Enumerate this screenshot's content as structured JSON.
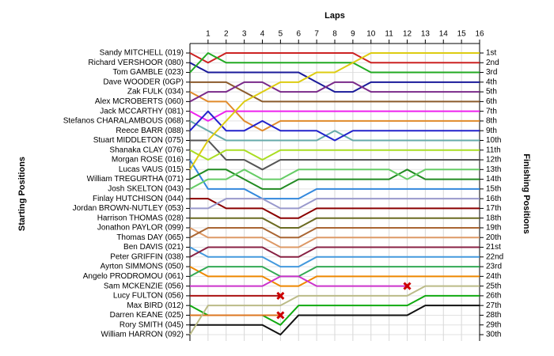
{
  "chart_data": {
    "type": "line",
    "title": "Laps",
    "y_label": "Starting Positions",
    "y2_label": "Finishing Positions",
    "x": [
      0,
      1,
      2,
      3,
      4,
      5,
      6,
      7,
      8,
      9,
      10,
      11,
      12,
      13,
      14,
      15,
      16
    ],
    "xlim": [
      0,
      16
    ],
    "xticks": [
      1,
      2,
      3,
      4,
      5,
      6,
      7,
      8,
      9,
      10,
      11,
      12,
      13,
      14,
      15,
      16
    ],
    "ylim": [
      1,
      30
    ],
    "inverted": true,
    "grid": true,
    "y2ticks": [
      {
        "value": 1,
        "label": "1st"
      },
      {
        "value": 2,
        "label": "2nd"
      },
      {
        "value": 3,
        "label": "3rd"
      },
      {
        "value": 4,
        "label": "4th"
      },
      {
        "value": 5,
        "label": "5th"
      },
      {
        "value": 6,
        "label": "6th"
      },
      {
        "value": 7,
        "label": "7th"
      },
      {
        "value": 8,
        "label": "8th"
      },
      {
        "value": 9,
        "label": "9th"
      },
      {
        "value": 10,
        "label": "10th"
      },
      {
        "value": 11,
        "label": "11th"
      },
      {
        "value": 12,
        "label": "12th"
      },
      {
        "value": 13,
        "label": "13th"
      },
      {
        "value": 14,
        "label": "14th"
      },
      {
        "value": 15,
        "label": "15th"
      },
      {
        "value": 16,
        "label": "16th"
      },
      {
        "value": 17,
        "label": "17th"
      },
      {
        "value": 18,
        "label": "18th"
      },
      {
        "value": 19,
        "label": "19th"
      },
      {
        "value": 20,
        "label": "20th"
      },
      {
        "value": 21,
        "label": "21st"
      },
      {
        "value": 22,
        "label": "22nd"
      },
      {
        "value": 23,
        "label": "23rd"
      },
      {
        "value": 24,
        "label": "24th"
      },
      {
        "value": 25,
        "label": "25th"
      },
      {
        "value": 26,
        "label": "26th"
      },
      {
        "value": 27,
        "label": "27th"
      },
      {
        "value": 28,
        "label": "28th"
      },
      {
        "value": 29,
        "label": "29th"
      },
      {
        "value": 30,
        "label": "30th"
      }
    ],
    "series": [
      {
        "name": "Sandy MITCHELL (019)",
        "color": "#cc2222",
        "values": [
          1,
          2,
          1,
          1,
          1,
          1,
          1,
          1,
          1,
          1,
          2,
          2,
          2,
          2,
          2,
          2,
          2
        ]
      },
      {
        "name": "Richard VERSHOOR (080)",
        "color": "#1a1a99",
        "values": [
          2,
          3,
          3,
          3,
          3,
          3,
          3,
          4,
          5,
          5,
          4,
          4,
          4,
          4,
          4,
          4,
          4
        ]
      },
      {
        "name": "Tom GAMBLE (023)",
        "color": "#22aa22",
        "values": [
          3,
          1,
          2,
          2,
          2,
          2,
          2,
          2,
          2,
          2,
          3,
          3,
          3,
          3,
          3,
          3,
          3
        ]
      },
      {
        "name": "Dave WOODER (0GP)",
        "color": "#8b5a2b",
        "values": [
          4,
          4,
          4,
          5,
          6,
          6,
          6,
          6,
          6,
          6,
          6,
          6,
          6,
          6,
          6,
          6,
          6
        ]
      },
      {
        "name": "Zak FULK (034)",
        "color": "#e08a2a",
        "values": [
          5,
          6,
          6,
          8,
          9,
          8,
          8,
          8,
          8,
          8,
          8,
          8,
          8,
          8,
          8,
          8,
          8
        ]
      },
      {
        "name": "Alex MCROBERTS (060)",
        "color": "#7a2a8a",
        "values": [
          6,
          5,
          5,
          4,
          4,
          5,
          5,
          5,
          4,
          4,
          5,
          5,
          5,
          5,
          5,
          5,
          5
        ]
      },
      {
        "name": "Jack MCCARTHY (081)",
        "color": "#ee22ee",
        "values": [
          7,
          8,
          7,
          7,
          7,
          7,
          7,
          7,
          7,
          7,
          7,
          7,
          7,
          7,
          7,
          7,
          7
        ]
      },
      {
        "name": "Stefanos CHARALAMBOUS (068)",
        "color": "#66aaaa",
        "values": [
          8,
          9,
          10,
          10,
          10,
          10,
          10,
          10,
          9,
          10,
          10,
          10,
          10,
          10,
          10,
          10,
          10
        ]
      },
      {
        "name": "Reece BARR (088)",
        "color": "#2222cc",
        "values": [
          9,
          7,
          9,
          9,
          8,
          9,
          9,
          9,
          10,
          9,
          9,
          9,
          9,
          9,
          9,
          9,
          9
        ]
      },
      {
        "name": "Stuart MIDDLETON (075)",
        "color": "#555555",
        "values": [
          10,
          10,
          12,
          12,
          13,
          12,
          12,
          12,
          12,
          12,
          12,
          12,
          12,
          12,
          12,
          12,
          12
        ]
      },
      {
        "name": "Shanaka CLAY (076)",
        "color": "#aadd22",
        "values": [
          11,
          12,
          11,
          11,
          12,
          11,
          11,
          11,
          11,
          11,
          11,
          11,
          11,
          11,
          11,
          11,
          11
        ]
      },
      {
        "name": "Morgan ROSE (016)",
        "color": "#3388dd",
        "values": [
          12,
          15,
          15,
          15,
          16,
          16,
          16,
          15,
          15,
          15,
          15,
          15,
          15,
          15,
          15,
          15,
          15
        ]
      },
      {
        "name": "Lucas VAUS (015)",
        "color": "#ddcc11",
        "values": [
          13,
          10,
          8,
          6,
          5,
          4,
          4,
          3,
          3,
          2,
          1,
          1,
          1,
          1,
          1,
          1,
          1
        ]
      },
      {
        "name": "William TREGURTHA (071)",
        "color": "#228b22",
        "values": [
          14,
          13,
          13,
          14,
          15,
          15,
          14,
          14,
          14,
          14,
          14,
          14,
          13,
          14,
          14,
          14,
          14
        ]
      },
      {
        "name": "Josh SKELTON (043)",
        "color": "#66cc66",
        "values": [
          15,
          14,
          14,
          13,
          14,
          14,
          13,
          13,
          13,
          13,
          13,
          13,
          14,
          13,
          13,
          13,
          13
        ]
      },
      {
        "name": "Finlay HUTCHISON (044)",
        "color": "#8b0000",
        "values": [
          16,
          16,
          17,
          17,
          17,
          18,
          18,
          17,
          17,
          17,
          17,
          17,
          17,
          17,
          17,
          17,
          17
        ]
      },
      {
        "name": "Jordan BROWN-NUTLEY (053)",
        "color": "#9999cc",
        "values": [
          17,
          17,
          16,
          16,
          16,
          17,
          17,
          16,
          16,
          16,
          16,
          16,
          16,
          16,
          16,
          16,
          16
        ]
      },
      {
        "name": "Harrison THOMAS (028)",
        "color": "#6b6b22",
        "values": [
          18,
          18,
          18,
          18,
          18,
          19,
          19,
          18,
          18,
          18,
          18,
          18,
          18,
          18,
          18,
          18,
          18
        ]
      },
      {
        "name": "Jonathon PAYLOR (099)",
        "color": "#dd9966",
        "values": [
          19,
          20,
          20,
          20,
          20,
          21,
          21,
          20,
          20,
          20,
          20,
          20,
          20,
          20,
          20,
          20,
          20
        ]
      },
      {
        "name": "Thomas DAY (065)",
        "color": "#aa6633",
        "values": [
          20,
          19,
          19,
          19,
          19,
          20,
          20,
          19,
          19,
          19,
          19,
          19,
          19,
          19,
          19,
          19,
          19
        ]
      },
      {
        "name": "Ben DAVIS (021)",
        "color": "#4499dd",
        "values": [
          21,
          22,
          22,
          22,
          22,
          23,
          23,
          22,
          22,
          22,
          22,
          22,
          22,
          22,
          22,
          22,
          22
        ]
      },
      {
        "name": "Peter GRIFFIN (038)",
        "color": "#882244",
        "values": [
          22,
          21,
          21,
          21,
          21,
          22,
          22,
          21,
          21,
          21,
          21,
          21,
          21,
          21,
          21,
          21,
          21
        ]
      },
      {
        "name": "Ayrton SIMMONS (050)",
        "color": "#ee8800",
        "values": [
          23,
          24,
          24,
          24,
          24,
          25,
          25,
          24,
          24,
          24,
          24,
          24,
          24,
          24,
          24,
          24,
          24
        ]
      },
      {
        "name": "Angelo PRODROMOU (061)",
        "color": "#33aa55",
        "values": [
          24,
          23,
          23,
          23,
          23,
          24,
          24,
          23,
          23,
          23,
          23,
          23,
          23,
          23,
          23,
          23,
          23
        ]
      },
      {
        "name": "Sam MCKENZIE (056)",
        "color": "#cc33cc",
        "values": [
          25,
          25,
          25,
          25,
          25,
          24,
          24,
          25,
          25,
          25,
          25,
          25,
          25,
          null,
          null,
          null,
          null
        ]
      },
      {
        "name": "Lucy FULTON (056)",
        "color": "#aa1111",
        "values": [
          26,
          26,
          26,
          26,
          26,
          26,
          null,
          null,
          null,
          null,
          null,
          null,
          null,
          null,
          null,
          null,
          null
        ]
      },
      {
        "name": "Max BIRD (012)",
        "color": "#11aa11",
        "values": [
          27,
          28,
          28,
          28,
          28,
          29,
          27,
          27,
          27,
          27,
          27,
          27,
          27,
          26,
          26,
          26,
          26
        ]
      },
      {
        "name": "Darren KEANE (025)",
        "color": "#dd7722",
        "values": [
          28,
          28,
          28,
          28,
          28,
          28,
          null,
          null,
          null,
          null,
          null,
          null,
          null,
          null,
          null,
          null,
          null
        ]
      },
      {
        "name": "Rory SMITH (045)",
        "color": "#111111",
        "values": [
          29,
          29,
          29,
          29,
          29,
          30,
          28,
          28,
          28,
          28,
          28,
          28,
          28,
          27,
          27,
          27,
          27
        ]
      },
      {
        "name": "William HARRON (092)",
        "color": "#bbbb88",
        "values": [
          30,
          27,
          27,
          27,
          27,
          27,
          26,
          26,
          26,
          26,
          26,
          26,
          26,
          25,
          25,
          25,
          25
        ]
      }
    ]
  }
}
